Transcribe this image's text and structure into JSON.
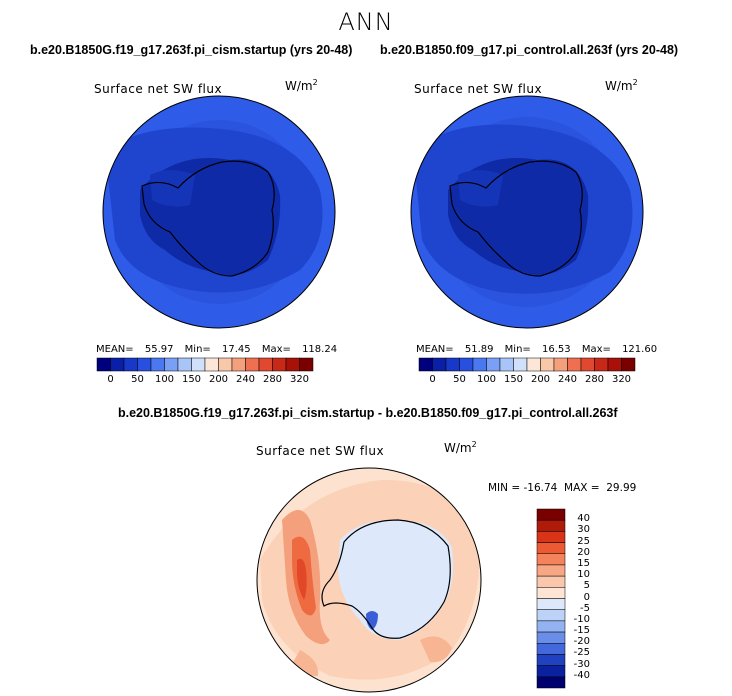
{
  "season": "ANN",
  "panels": [
    {
      "case": "b.e20.B1850G.f19_g17.263f.pi_cism.startup (yrs 20-48)",
      "variable": "Surface net SW flux",
      "units_base": "W/m",
      "units_exp": "2",
      "mean_label": "MEAN=",
      "mean": "55.97",
      "min_label": "Min=",
      "min": "17.45",
      "max_label": "Max=",
      "max": "118.24"
    },
    {
      "case": "b.e20.B1850.f09_g17.pi_control.all.263f (yrs 20-48)",
      "variable": "Surface net SW flux",
      "units_base": "W/m",
      "units_exp": "2",
      "mean_label": "MEAN=",
      "mean": "51.89",
      "min_label": "Min=",
      "min": "16.53",
      "max_label": "Max=",
      "max": "121.60"
    }
  ],
  "abs_colorbar": {
    "ticks": [
      "0",
      "50",
      "100",
      "150",
      "200",
      "240",
      "280",
      "320"
    ],
    "colors": [
      "#00007f",
      "#0a1fa8",
      "#1838c8",
      "#2850e0",
      "#4a78f0",
      "#7aa0f5",
      "#a8c4f8",
      "#d0e0fa",
      "#fbe6d8",
      "#f8c8a8",
      "#f5a07c",
      "#ee7050",
      "#e04830",
      "#c82818",
      "#a81008",
      "#7a0000"
    ]
  },
  "difference": {
    "title": "b.e20.B1850G.f19_g17.263f.pi_cism.startup - b.e20.B1850.f09_g17.pi_control.all.263f",
    "variable": "Surface net SW flux",
    "units_base": "W/m",
    "units_exp": "2",
    "minmax": "MIN = -16.74  MAX =  29.99",
    "ticks": [
      "40",
      "30",
      "25",
      "20",
      "15",
      "10",
      "5",
      "0",
      "-5",
      "-10",
      "-15",
      "-20",
      "-25",
      "-30",
      "-40"
    ],
    "colors": [
      "#7a0000",
      "#b01a08",
      "#d83418",
      "#ec5a34",
      "#f4825a",
      "#f8a784",
      "#fac7ac",
      "#fde4d4",
      "#dde9fb",
      "#bcd2f7",
      "#93b2f2",
      "#6a8ee8",
      "#4268dc",
      "#2042c0",
      "#0a22a0",
      "#00006e"
    ]
  }
}
